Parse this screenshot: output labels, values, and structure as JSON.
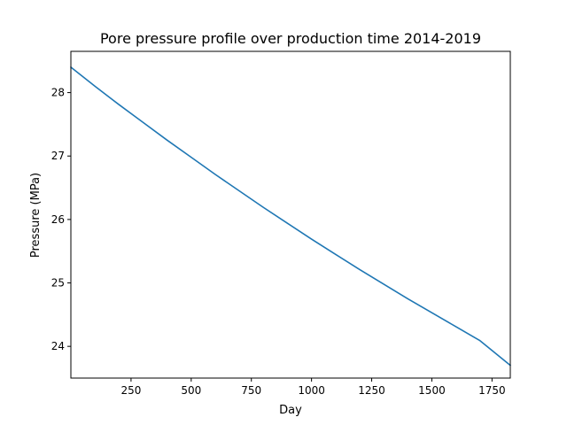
{
  "chart_data": {
    "type": "line",
    "title": "Pore pressure profile over production time 2014-2019",
    "xlabel": "Day",
    "ylabel": "Pressure (MPa)",
    "xlim": [
      0,
      1826
    ],
    "ylim": [
      23.5,
      28.65
    ],
    "xticks": [
      250,
      500,
      750,
      1000,
      1250,
      1500,
      1750
    ],
    "yticks": [
      24,
      25,
      26,
      27,
      28
    ],
    "grid": false,
    "legend": "none",
    "series": [
      {
        "color": "#1f77b4",
        "x": [
          0,
          100,
          200,
          300,
          400,
          500,
          600,
          700,
          800,
          900,
          1000,
          1100,
          1200,
          1300,
          1400,
          1500,
          1600,
          1700,
          1826
        ],
        "y": [
          28.4,
          28.1,
          27.81,
          27.53,
          27.25,
          26.98,
          26.71,
          26.45,
          26.19,
          25.94,
          25.69,
          25.45,
          25.21,
          24.98,
          24.75,
          24.53,
          24.31,
          24.09,
          23.7
        ]
      }
    ]
  }
}
